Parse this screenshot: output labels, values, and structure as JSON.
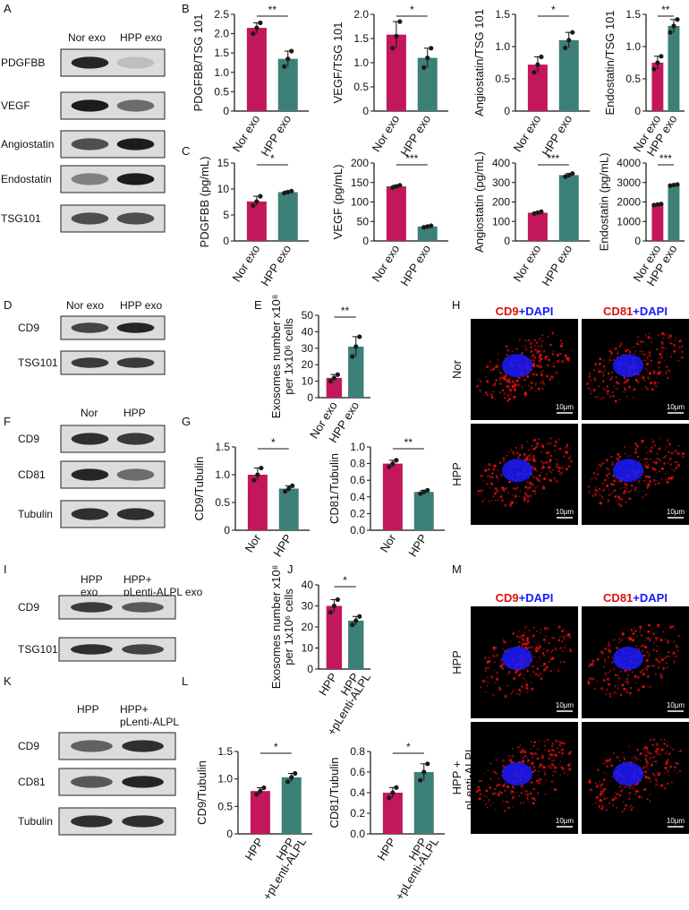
{
  "colors": {
    "nor": "#c2185b",
    "hpp": "#3d8078",
    "point": "#1a1a1a",
    "cd_red": "#e01010",
    "dapi_blue": "#1a1aff"
  },
  "panel_letters": {
    "A": "A",
    "B": "B",
    "C": "C",
    "D": "D",
    "E": "E",
    "F": "F",
    "G": "G",
    "H": "H",
    "I": "I",
    "J": "J",
    "K": "K",
    "L": "L",
    "M": "M"
  },
  "blot_a": {
    "columns": [
      "Nor exo",
      "HPP exo"
    ],
    "rows": [
      "PDGFBB",
      "VEGF",
      "Angiostatin",
      "Endostatin",
      "TSG101"
    ],
    "intensity": [
      [
        0.9,
        0.15
      ],
      [
        0.95,
        0.55
      ],
      [
        0.7,
        0.95
      ],
      [
        0.45,
        0.95
      ],
      [
        0.7,
        0.7
      ]
    ]
  },
  "blot_d": {
    "columns": [
      "Nor exo",
      "HPP exo"
    ],
    "rows": [
      "CD9",
      "TSG101"
    ],
    "intensity": [
      [
        0.75,
        0.9
      ],
      [
        0.8,
        0.8
      ]
    ]
  },
  "blot_f": {
    "columns": [
      "Nor",
      "HPP"
    ],
    "rows": [
      "CD9",
      "CD81",
      "Tubulin"
    ],
    "intensity": [
      [
        0.85,
        0.8
      ],
      [
        0.9,
        0.55
      ],
      [
        0.85,
        0.85
      ]
    ]
  },
  "blot_i": {
    "columns": [
      "HPP\nexo",
      "HPP+\npLenti-ALPL exo"
    ],
    "rows": [
      "CD9",
      "TSG101"
    ],
    "intensity": [
      [
        0.8,
        0.65
      ],
      [
        0.85,
        0.75
      ]
    ]
  },
  "blot_k": {
    "columns": [
      "HPP",
      "HPP+\npLenti-ALPL"
    ],
    "rows": [
      "CD9",
      "CD81",
      "Tubulin"
    ],
    "intensity": [
      [
        0.6,
        0.85
      ],
      [
        0.65,
        0.9
      ],
      [
        0.85,
        0.85
      ]
    ]
  },
  "microscopy_h": {
    "columns": [
      [
        "CD9",
        "+DAPI"
      ],
      [
        "CD81",
        "+DAPI"
      ]
    ],
    "rows": [
      "Nor",
      "HPP"
    ],
    "scale": "10μm"
  },
  "microscopy_m": {
    "columns": [
      [
        "CD9",
        "+DAPI"
      ],
      [
        "CD81",
        "+DAPI"
      ]
    ],
    "rows": [
      "HPP",
      "HPP +\npLenti-ALPL"
    ],
    "scale": "10μm"
  },
  "chart_data": [
    {
      "panel": "B",
      "type": "bar",
      "ylabel": "PDGFBB/TSG 101",
      "categories": [
        "Nor exo",
        "HPP exo"
      ],
      "values": [
        2.15,
        1.35
      ],
      "points": [
        [
          2.0,
          2.15,
          2.28
        ],
        [
          1.15,
          1.35,
          1.55
        ]
      ],
      "ylim": [
        0,
        2.5
      ],
      "ticks": [
        "0",
        "0.5",
        "1.0",
        "1.5",
        "2.0",
        "2.5"
      ],
      "sig": "**"
    },
    {
      "panel": "B",
      "type": "bar",
      "ylabel": "VEGF/TSG 101",
      "categories": [
        "Nor exo",
        "HPP exo"
      ],
      "values": [
        1.58,
        1.1
      ],
      "points": [
        [
          1.3,
          1.55,
          1.85
        ],
        [
          0.9,
          1.1,
          1.3
        ]
      ],
      "ylim": [
        0,
        2.0
      ],
      "ticks": [
        "0",
        "0.5",
        "1.0",
        "1.5",
        "2.0"
      ],
      "sig": "*"
    },
    {
      "panel": "B",
      "type": "bar",
      "ylabel": "Angiostatin/TSG 101",
      "categories": [
        "Nor exo",
        "HPP exo"
      ],
      "values": [
        0.72,
        1.1
      ],
      "points": [
        [
          0.6,
          0.72,
          0.84
        ],
        [
          0.98,
          1.1,
          1.22
        ]
      ],
      "ylim": [
        0,
        1.5
      ],
      "ticks": [
        "0",
        "0.5",
        "1.0",
        "1.5"
      ],
      "sig": "*"
    },
    {
      "panel": "B",
      "type": "bar",
      "ylabel": "Endostatin/TSG 101",
      "categories": [
        "Nor exo",
        "HPP exo"
      ],
      "values": [
        0.75,
        1.32
      ],
      "points": [
        [
          0.65,
          0.75,
          0.85
        ],
        [
          1.22,
          1.32,
          1.42
        ]
      ],
      "ylim": [
        0,
        1.5
      ],
      "ticks": [
        "0",
        "0.5",
        "1.0",
        "1.5"
      ],
      "sig": "**"
    },
    {
      "panel": "C",
      "type": "bar",
      "ylabel": "PDGFBB (pg/mL)",
      "categories": [
        "Nor exo",
        "HPP exo"
      ],
      "values": [
        7.6,
        9.4
      ],
      "points": [
        [
          6.8,
          7.6,
          8.6
        ],
        [
          9.2,
          9.4,
          9.6
        ]
      ],
      "ylim": [
        0,
        15
      ],
      "ticks": [
        "0",
        "5",
        "10",
        "15"
      ],
      "sig": "*"
    },
    {
      "panel": "C",
      "type": "bar",
      "ylabel": "VEGF (pg/mL)",
      "categories": [
        "Nor exo",
        "HPP exo"
      ],
      "values": [
        140,
        37
      ],
      "points": [
        [
          137,
          140,
          143
        ],
        [
          35,
          37,
          39
        ]
      ],
      "ylim": [
        0,
        200
      ],
      "ticks": [
        "0",
        "50",
        "100",
        "150",
        "200"
      ],
      "sig": "***"
    },
    {
      "panel": "C",
      "type": "bar",
      "ylabel": "Angiostatin (pg/mL)",
      "categories": [
        "Nor exo",
        "HPP exo"
      ],
      "values": [
        145,
        338
      ],
      "points": [
        [
          140,
          145,
          150
        ],
        [
          330,
          338,
          346
        ]
      ],
      "ylim": [
        0,
        400
      ],
      "ticks": [
        "0",
        "100",
        "200",
        "300",
        "400"
      ],
      "sig": "***"
    },
    {
      "panel": "C",
      "type": "bar",
      "ylabel": "Endostatin (pg/mL)",
      "categories": [
        "Nor exo",
        "HPP exo"
      ],
      "values": [
        1870,
        2870
      ],
      "points": [
        [
          1840,
          1870,
          1900
        ],
        [
          2840,
          2870,
          2900
        ]
      ],
      "ylim": [
        0,
        4000
      ],
      "ticks": [
        "0",
        "1000",
        "2000",
        "3000",
        "4000"
      ],
      "sig": "***"
    },
    {
      "panel": "E",
      "type": "bar",
      "ylabel": "Exosomes number x10⁸\nper 1x10⁶ cells",
      "categories": [
        "Nor exo",
        "HPP exo"
      ],
      "values": [
        12,
        31
      ],
      "points": [
        [
          10,
          12,
          14
        ],
        [
          25,
          31,
          37
        ]
      ],
      "ylim": [
        0,
        50
      ],
      "ticks": [
        "0",
        "10",
        "20",
        "30",
        "40",
        "50"
      ],
      "sig": "**"
    },
    {
      "panel": "G",
      "type": "bar",
      "ylabel": "CD9/Tubulin",
      "categories": [
        "Nor",
        "HPP"
      ],
      "values": [
        1.0,
        0.75
      ],
      "points": [
        [
          0.9,
          1.0,
          1.12
        ],
        [
          0.7,
          0.75,
          0.8
        ]
      ],
      "ylim": [
        0,
        1.5
      ],
      "ticks": [
        "0",
        "0.5",
        "1.0",
        "1.5"
      ],
      "sig": "*"
    },
    {
      "panel": "G",
      "type": "bar",
      "ylabel": "CD81/Tubulin",
      "categories": [
        "Nor",
        "HPP"
      ],
      "values": [
        0.8,
        0.46
      ],
      "points": [
        [
          0.76,
          0.8,
          0.84
        ],
        [
          0.44,
          0.46,
          0.48
        ]
      ],
      "ylim": [
        0,
        1.0
      ],
      "ticks": [
        "0.0",
        "0.2",
        "0.4",
        "0.6",
        "0.8",
        "1.0"
      ],
      "sig": "**"
    },
    {
      "panel": "J",
      "type": "bar",
      "ylabel": "Exosomes number x10⁸\nper 1x10⁶ cells",
      "categories": [
        "HPP",
        "HPP\n+pLenti-ALPL"
      ],
      "values": [
        30,
        23
      ],
      "points": [
        [
          27,
          30,
          33
        ],
        [
          21,
          23,
          25
        ]
      ],
      "ylim": [
        0,
        40
      ],
      "ticks": [
        "0",
        "10",
        "20",
        "30",
        "40"
      ],
      "sig": "*"
    },
    {
      "panel": "L",
      "type": "bar",
      "ylabel": "CD9/Tubulin",
      "categories": [
        "HPP",
        "HPP\n+pLenti-ALPL"
      ],
      "values": [
        0.78,
        1.03
      ],
      "points": [
        [
          0.72,
          0.78,
          0.84
        ],
        [
          0.95,
          1.03,
          1.1
        ]
      ],
      "ylim": [
        0,
        1.5
      ],
      "ticks": [
        "0",
        "0.5",
        "1.0",
        "1.5"
      ],
      "sig": "*"
    },
    {
      "panel": "L",
      "type": "bar",
      "ylabel": "CD81/Tubulin",
      "categories": [
        "HPP",
        "HPP\n+pLenti-ALPL"
      ],
      "values": [
        0.4,
        0.6
      ],
      "points": [
        [
          0.35,
          0.4,
          0.45
        ],
        [
          0.52,
          0.6,
          0.68
        ]
      ],
      "ylim": [
        0,
        0.8
      ],
      "ticks": [
        "0.0",
        "0.2",
        "0.4",
        "0.6",
        "0.8"
      ],
      "sig": "*"
    }
  ]
}
